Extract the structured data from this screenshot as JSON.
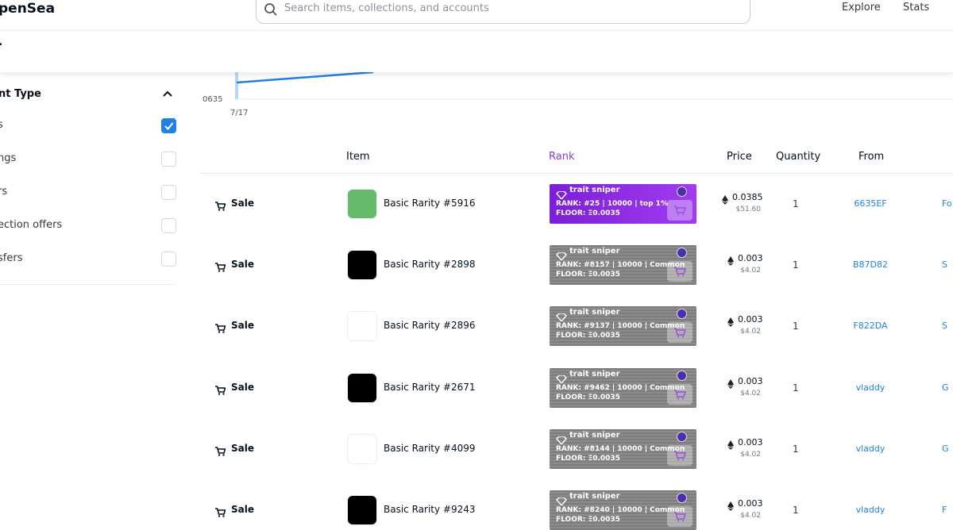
{
  "header": {
    "logo": "penSea",
    "search_placeholder": "Search items, collections, and accounts",
    "nav": [
      "Explore",
      "Stats"
    ]
  },
  "subheader": {
    "text": "."
  },
  "sidebar": {
    "title": "nt Type",
    "filters": [
      {
        "label": "s",
        "checked": true
      },
      {
        "label": "ngs",
        "checked": false
      },
      {
        "label": "rs",
        "checked": false
      },
      {
        "label": "ection offers",
        "checked": false
      },
      {
        "label": "sfers",
        "checked": false
      }
    ]
  },
  "chart": {
    "y_label": "0635",
    "x_label": "7/17"
  },
  "table": {
    "headers": [
      "Item",
      "Rank",
      "Price",
      "Quantity",
      "From"
    ],
    "rows": [
      {
        "event": "Sale",
        "item": "Basic Rarity #5916",
        "thumb_color": "#66bb6a",
        "badge": "trait sniper",
        "badge_style": "rare",
        "rank": "RANK: #25 | 10000 | top 1%",
        "floor": "FLOOR: Ξ0.0035",
        "price": "0.0385",
        "usd": "$51.60",
        "quantity": "1",
        "from": "6635EF",
        "to": "Fo"
      },
      {
        "event": "Sale",
        "item": "Basic Rarity #2898",
        "thumb_color": "#000000",
        "badge": "trait sniper",
        "badge_style": "common",
        "rank": "RANK:  #8157 | 10000 | Common",
        "floor": "FLOOR:  Ξ0.0035",
        "price": "0.003",
        "usd": "$4.02",
        "quantity": "1",
        "from": "B87D82",
        "to": "S"
      },
      {
        "event": "Sale",
        "item": "Basic Rarity #2896",
        "thumb_color": "#ffffff",
        "badge": "trait sniper",
        "badge_style": "common",
        "rank": "RANK:  #9137 | 10000 | Common",
        "floor": "FLOOR:  Ξ0.0035",
        "price": "0.003",
        "usd": "$4.02",
        "quantity": "1",
        "from": "F822DA",
        "to": "S"
      },
      {
        "event": "Sale",
        "item": "Basic Rarity #2671",
        "thumb_color": "#000000",
        "badge": "trait sniper",
        "badge_style": "common",
        "rank": "RANK:  #9462 | 10000 | Common",
        "floor": "FLOOR:  Ξ0.0035",
        "price": "0.003",
        "usd": "$4.02",
        "quantity": "1",
        "from": "vladdy",
        "to": "G"
      },
      {
        "event": "Sale",
        "item": "Basic Rarity #4099",
        "thumb_color": "#ffffff",
        "badge": "trait sniper",
        "badge_style": "common",
        "rank": "RANK:  #8144 | 10000 | Common",
        "floor": "FLOOR:  Ξ0.0035",
        "price": "0.003",
        "usd": "$4.02",
        "quantity": "1",
        "from": "vladdy",
        "to": "G"
      },
      {
        "event": "Sale",
        "item": "Basic Rarity #9243",
        "thumb_color": "#000000",
        "badge": "trait sniper",
        "badge_style": "common",
        "rank": "RANK:  #8240 | 10000 | Common",
        "floor": "FLOOR:  Ξ0.0035",
        "price": "0.003",
        "usd": "$4.02",
        "quantity": "1",
        "from": "vladdy",
        "to": "F"
      }
    ]
  }
}
